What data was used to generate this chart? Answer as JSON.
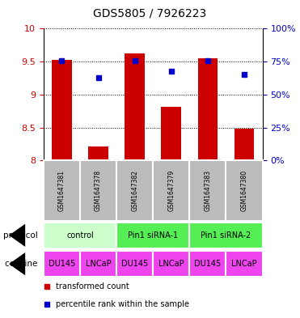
{
  "title": "GDS5805 / 7926223",
  "samples": [
    "GSM1647381",
    "GSM1647378",
    "GSM1647382",
    "GSM1647379",
    "GSM1647383",
    "GSM1647380"
  ],
  "bar_values": [
    9.53,
    8.22,
    9.63,
    8.82,
    9.55,
    8.49
  ],
  "percentile_values": [
    76,
    63,
    76,
    68,
    76,
    65
  ],
  "ylim_left": [
    8.0,
    10.0
  ],
  "ylim_right": [
    0,
    100
  ],
  "yticks_left": [
    8.0,
    8.5,
    9.0,
    9.5,
    10.0
  ],
  "yticks_right": [
    0,
    25,
    50,
    75,
    100
  ],
  "yticklabels_left": [
    "8",
    "8.5",
    "9",
    "9.5",
    "10"
  ],
  "yticklabels_right": [
    "0%",
    "25%",
    "50%",
    "75%",
    "100%"
  ],
  "bar_color": "#cc0000",
  "dot_color": "#0000cc",
  "label_color_left": "#cc0000",
  "label_color_right": "#0000cc",
  "sample_bg_color": "#bbbbbb",
  "protocol_color_control": "#ccffcc",
  "protocol_color_sirna1": "#55ee55",
  "protocol_color_sirna2": "#55ee55",
  "cell_line_color": "#ee44ee",
  "protocols": [
    {
      "label": "control",
      "start": 0,
      "end": 2,
      "color_key": "protocol_color_control"
    },
    {
      "label": "Pin1 siRNA-1",
      "start": 2,
      "end": 4,
      "color_key": "protocol_color_sirna1"
    },
    {
      "label": "Pin1 siRNA-2",
      "start": 4,
      "end": 6,
      "color_key": "protocol_color_sirna2"
    }
  ],
  "cell_labels": [
    "DU145",
    "LNCaP",
    "DU145",
    "LNCaP",
    "DU145",
    "LNCaP"
  ]
}
